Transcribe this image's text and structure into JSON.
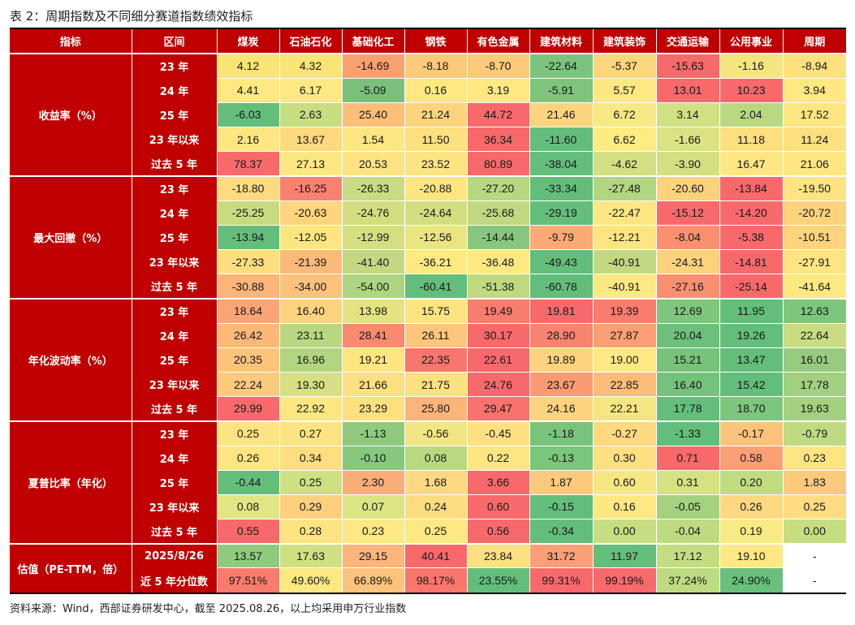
{
  "caption": "表 2：周期指数及不同细分赛道指数绩效指标",
  "header": {
    "indicator": "指标",
    "period": "区间",
    "columns": [
      "煤炭",
      "石油石化",
      "基础化工",
      "钢铁",
      "有色金属",
      "建筑材料",
      "建筑装饰",
      "交通运输",
      "公用事业",
      "周期"
    ]
  },
  "groups": [
    {
      "name": "收益率（%）",
      "rows": [
        {
          "period": "23 年",
          "values": [
            "4.12",
            "4.32",
            "-14.69",
            "-8.18",
            "-8.70",
            "-22.64",
            "-5.37",
            "-15.63",
            "-1.16",
            "-8.94"
          ],
          "colors": [
            "#f8e576",
            "#f8e576",
            "#f9a16e",
            "#fcca7a",
            "#fcca7a",
            "#7cc47e",
            "#fbd67c",
            "#f8696b",
            "#f4e57f",
            "#fde07f"
          ]
        },
        {
          "period": "24 年",
          "values": [
            "4.41",
            "6.17",
            "-5.09",
            "0.16",
            "3.19",
            "-5.91",
            "5.57",
            "13.01",
            "10.23",
            "3.94"
          ],
          "colors": [
            "#fde882",
            "#fde882",
            "#79c07b",
            "#fde882",
            "#fde882",
            "#7fc47d",
            "#fde882",
            "#f8696b",
            "#f8696b",
            "#fde882"
          ]
        },
        {
          "period": "25 年",
          "values": [
            "-6.03",
            "2.63",
            "25.40",
            "21.24",
            "44.72",
            "21.46",
            "6.72",
            "3.14",
            "2.04",
            "17.52"
          ],
          "colors": [
            "#63be7b",
            "#c5de80",
            "#fbbf78",
            "#fcd47e",
            "#f8696b",
            "#fdd47e",
            "#f6e884",
            "#cfe183",
            "#b8d982",
            "#fde680"
          ]
        },
        {
          "period": "23 年以来",
          "values": [
            "2.16",
            "13.67",
            "1.54",
            "11.50",
            "36.34",
            "-11.60",
            "6.62",
            "-1.66",
            "11.18",
            "11.24"
          ],
          "colors": [
            "#fde782",
            "#fed97e",
            "#fde782",
            "#fde07f",
            "#f8696b",
            "#63be7b",
            "#feec83",
            "#dbe283",
            "#fedf80",
            "#fde080"
          ]
        },
        {
          "period": "过去 5 年",
          "values": [
            "78.37",
            "27.13",
            "20.53",
            "23.52",
            "80.89",
            "-38.04",
            "-4.62",
            "-3.90",
            "16.47",
            "21.06"
          ],
          "colors": [
            "#f8696b",
            "#fce882",
            "#fee383",
            "#fee383",
            "#f8696b",
            "#63be7b",
            "#d3df82",
            "#d3df82",
            "#fee683",
            "#fee683"
          ]
        }
      ]
    },
    {
      "name": "最大回撤（%）",
      "rows": [
        {
          "period": "23 年",
          "values": [
            "-18.80",
            "-16.25",
            "-26.33",
            "-20.88",
            "-27.20",
            "-33.34",
            "-27.48",
            "-20.60",
            "-13.84",
            "-19.50"
          ],
          "colors": [
            "#feda80",
            "#f8826f",
            "#c9dc82",
            "#fee582",
            "#b7d781",
            "#63be7b",
            "#b1d580",
            "#fdd27d",
            "#f8696b",
            "#fee482"
          ]
        },
        {
          "period": "24 年",
          "values": [
            "-25.25",
            "-20.63",
            "-24.76",
            "-24.64",
            "-25.68",
            "-29.19",
            "-22.47",
            "-15.12",
            "-14.20",
            "-20.72"
          ],
          "colors": [
            "#c8db80",
            "#fdd57f",
            "#d3de81",
            "#d3de81",
            "#c0d980",
            "#63be7b",
            "#fee683",
            "#f8696b",
            "#f8696b",
            "#fdd27d"
          ]
        },
        {
          "period": "25 年",
          "values": [
            "-13.94",
            "-12.05",
            "-12.99",
            "-12.56",
            "-14.44",
            "-9.79",
            "-12.21",
            "-8.04",
            "-5.38",
            "-10.51"
          ],
          "colors": [
            "#63be7b",
            "#fde682",
            "#d4df82",
            "#eae582",
            "#86c77d",
            "#fbaa76",
            "#fde682",
            "#f9906f",
            "#f8696b",
            "#fdd37e"
          ]
        },
        {
          "period": "23 年以来",
          "values": [
            "-27.33",
            "-21.39",
            "-41.40",
            "-36.21",
            "-36.48",
            "-49.43",
            "-40.91",
            "-24.31",
            "-14.81",
            "-27.91"
          ],
          "colors": [
            "#fede80",
            "#fbb97a",
            "#c2d981",
            "#fde981",
            "#fde981",
            "#63be7b",
            "#c2d981",
            "#fdd27d",
            "#f8696b",
            "#fde681"
          ]
        },
        {
          "period": "过去 5 年",
          "values": [
            "-30.88",
            "-34.00",
            "-54.00",
            "-60.41",
            "-51.38",
            "-60.78",
            "-40.91",
            "-27.16",
            "-25.14",
            "-41.64"
          ],
          "colors": [
            "#fbb479",
            "#fbc27c",
            "#aed581",
            "#63be7b",
            "#bfd981",
            "#63be7b",
            "#fde982",
            "#f98f71",
            "#f8696b",
            "#fde981"
          ]
        }
      ]
    },
    {
      "name": "年化波动率（%）",
      "rows": [
        {
          "period": "23 年",
          "values": [
            "18.64",
            "16.40",
            "13.98",
            "15.75",
            "19.49",
            "19.81",
            "19.39",
            "12.69",
            "11.95",
            "12.63"
          ],
          "colors": [
            "#fba576",
            "#fcd37e",
            "#e4e382",
            "#fde480",
            "#f87d6e",
            "#f8696b",
            "#f87d6e",
            "#7ec67d",
            "#63be7b",
            "#7ec67d"
          ]
        },
        {
          "period": "24 年",
          "values": [
            "26.42",
            "23.11",
            "28.41",
            "26.11",
            "30.17",
            "28.90",
            "27.87",
            "20.04",
            "19.26",
            "22.64"
          ],
          "colors": [
            "#fbb879",
            "#b8d781",
            "#f98a70",
            "#fcc77c",
            "#f8696b",
            "#f8836f",
            "#fa9f73",
            "#6cc07c",
            "#63be7b",
            "#c9dc81"
          ]
        },
        {
          "period": "25 年",
          "values": [
            "20.35",
            "16.96",
            "19.21",
            "22.35",
            "22.61",
            "19.89",
            "19.00",
            "15.21",
            "13.47",
            "16.01"
          ],
          "colors": [
            "#fcc37b",
            "#b1d580",
            "#fde580",
            "#f8766d",
            "#f8696b",
            "#fcd37e",
            "#fee883",
            "#78c27c",
            "#63be7b",
            "#97cb7f"
          ]
        },
        {
          "period": "23 年以来",
          "values": [
            "22.24",
            "19.30",
            "21.66",
            "21.75",
            "24.76",
            "23.67",
            "22.85",
            "16.40",
            "15.42",
            "17.78"
          ],
          "colors": [
            "#fcca7b",
            "#d6df82",
            "#fde07f",
            "#fde07f",
            "#f8696b",
            "#fa9a72",
            "#fbbc78",
            "#75c27c",
            "#63be7b",
            "#a2cf80"
          ]
        },
        {
          "period": "过去 5 年",
          "values": [
            "29.99",
            "22.92",
            "23.29",
            "25.80",
            "29.47",
            "24.16",
            "22.21",
            "17.78",
            "18.70",
            "19.63"
          ],
          "colors": [
            "#f8696b",
            "#fee683",
            "#fde180",
            "#fbb578",
            "#f8736c",
            "#fdd37e",
            "#f6e683",
            "#63be7b",
            "#7ec67d",
            "#a5d080"
          ]
        }
      ]
    },
    {
      "name": "夏普比率（年化）",
      "rows": [
        {
          "period": "23 年",
          "values": [
            "0.25",
            "0.27",
            "-1.13",
            "-0.56",
            "-0.45",
            "-1.18",
            "-0.27",
            "-1.33",
            "-0.17",
            "-0.79"
          ],
          "colors": [
            "#fde482",
            "#fde482",
            "#8fca7e",
            "#f1e683",
            "#fde181",
            "#79c37c",
            "#fed980",
            "#63be7b",
            "#fbc27b",
            "#bfdb81"
          ]
        },
        {
          "period": "24 年",
          "values": [
            "0.26",
            "0.34",
            "-0.10",
            "0.08",
            "0.22",
            "-0.13",
            "0.30",
            "0.71",
            "0.58",
            "0.23"
          ],
          "colors": [
            "#fde682",
            "#fede81",
            "#87c87e",
            "#b8d981",
            "#fde682",
            "#7cc57d",
            "#fee082",
            "#f8696b",
            "#fba074",
            "#fde682"
          ]
        },
        {
          "period": "25 年",
          "values": [
            "-0.44",
            "0.25",
            "2.30",
            "1.68",
            "3.66",
            "1.87",
            "0.60",
            "0.31",
            "0.20",
            "1.83"
          ],
          "colors": [
            "#63be7b",
            "#cfe082",
            "#fbad78",
            "#fed981",
            "#f8696b",
            "#fdc97c",
            "#f6e783",
            "#d6e182",
            "#c1db81",
            "#fdc97c"
          ]
        },
        {
          "period": "23 年以来",
          "values": [
            "0.08",
            "0.29",
            "0.07",
            "0.24",
            "0.60",
            "-0.15",
            "0.16",
            "-0.05",
            "0.26",
            "0.25"
          ],
          "colors": [
            "#e2e583",
            "#fdcf7e",
            "#dde483",
            "#fedd81",
            "#f8696b",
            "#63be7b",
            "#fde883",
            "#a4d27f",
            "#fed880",
            "#fedc81"
          ]
        },
        {
          "period": "过去 5 年",
          "values": [
            "0.55",
            "0.28",
            "0.23",
            "0.25",
            "0.56",
            "-0.34",
            "0.00",
            "-0.04",
            "0.19",
            "0.00"
          ],
          "colors": [
            "#f8696b",
            "#fde382",
            "#fde883",
            "#fde882",
            "#f8696b",
            "#63be7b",
            "#c6dd81",
            "#bedb81",
            "#f8ea84",
            "#c6dd81"
          ]
        }
      ]
    },
    {
      "name": "估值（PE-TTM，倍）",
      "rows": [
        {
          "period": "2025/8/26",
          "values": [
            "13.57",
            "17.63",
            "29.15",
            "40.41",
            "23.84",
            "31.72",
            "11.97",
            "17.12",
            "19.10",
            "-"
          ],
          "colors": [
            "#8fca7e",
            "#cfe083",
            "#fcb57a",
            "#f8696b",
            "#fde082",
            "#fa9f75",
            "#63be7b",
            "#c4dd82",
            "#fde883",
            "#ffffff"
          ]
        },
        {
          "period": "近 5 年分位数",
          "values": [
            "97.51%",
            "49.60%",
            "66.89%",
            "98.17%",
            "23.55%",
            "99.31%",
            "99.19%",
            "37.24%",
            "24.90%",
            "-"
          ],
          "colors": [
            "#f87b6d",
            "#fde882",
            "#fdc37d",
            "#f8766c",
            "#63be7b",
            "#f8696b",
            "#f8696b",
            "#bedb81",
            "#68c07c",
            "#ffffff"
          ]
        }
      ]
    }
  ],
  "source": "资料来源：Wind，西部证券研发中心，截至 2025.08.26，以上均采用申万行业指数"
}
